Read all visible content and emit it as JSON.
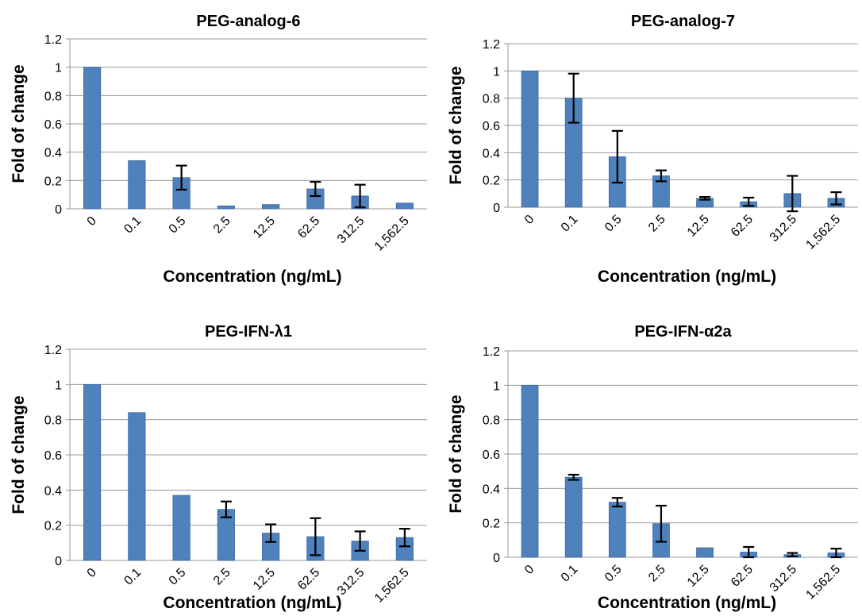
{
  "chart_data": [
    {
      "type": "bar",
      "title": "PEG-analog-6",
      "xlabel": "Concentration (ng/mL)",
      "ylabel": "Fold of change",
      "ylim": [
        0,
        1.2
      ],
      "yticks": [
        "0",
        "0.2",
        "0.4",
        "0.6",
        "0.8",
        "1",
        "1.2"
      ],
      "grid": true,
      "categories": [
        "0",
        "0.1",
        "0.5",
        "2.5",
        "12.5",
        "62.5",
        "312.5",
        "1,562.5"
      ],
      "values": [
        1.0,
        0.34,
        0.22,
        0.02,
        0.03,
        0.14,
        0.09,
        0.04
      ],
      "errors": [
        0,
        0,
        0.085,
        0,
        0,
        0.05,
        0.08,
        0
      ]
    },
    {
      "type": "bar",
      "title": "PEG-analog-7",
      "xlabel": "Concentration (ng/mL)",
      "ylabel": "Fold of change",
      "ylim": [
        0,
        1.2
      ],
      "yticks": [
        "0",
        "0.2",
        "0.4",
        "0.6",
        "0.8",
        "1",
        "1.2"
      ],
      "grid": true,
      "categories": [
        "0",
        "0.1",
        "0.5",
        "2.5",
        "12.5",
        "62.5",
        "312.5",
        "1,562.5"
      ],
      "values": [
        1.0,
        0.8,
        0.37,
        0.23,
        0.065,
        0.04,
        0.1,
        0.065
      ],
      "errors": [
        0,
        0.18,
        0.19,
        0.04,
        0.01,
        0.03,
        0.13,
        0.045
      ]
    },
    {
      "type": "bar",
      "title": "PEG-IFN-λ1",
      "xlabel": "Concentration (ng/mL)",
      "ylabel": "Fold of change",
      "ylim": [
        0,
        1.2
      ],
      "yticks": [
        "0",
        "0.2",
        "0.4",
        "0.6",
        "0.8",
        "1",
        "1.2"
      ],
      "grid": true,
      "categories": [
        "0",
        "0.1",
        "0.5",
        "2.5",
        "12.5",
        "62.5",
        "312.5",
        "1,562.5"
      ],
      "values": [
        1.0,
        0.84,
        0.37,
        0.29,
        0.155,
        0.135,
        0.11,
        0.13
      ],
      "errors": [
        0,
        0,
        0,
        0.045,
        0.05,
        0.105,
        0.055,
        0.05
      ]
    },
    {
      "type": "bar",
      "title": "PEG-IFN-α2a",
      "xlabel": "Concentration (ng/mL)",
      "ylabel": "Fold of change",
      "ylim": [
        0,
        1.2
      ],
      "yticks": [
        "0",
        "0.2",
        "0.4",
        "0.6",
        "0.8",
        "1",
        "1.2"
      ],
      "grid": true,
      "categories": [
        "0",
        "0.1",
        "0.5",
        "2.5",
        "12.5",
        "62.5",
        "312.5",
        "1,562.5"
      ],
      "values": [
        1.0,
        0.465,
        0.32,
        0.195,
        0.055,
        0.03,
        0.015,
        0.025
      ],
      "errors": [
        0,
        0.015,
        0.025,
        0.105,
        0,
        0.03,
        0.01,
        0.025
      ]
    }
  ],
  "colors": {
    "bar": "#4f81bd",
    "grid": "#9a9a9a",
    "error_bar": "#000000"
  }
}
